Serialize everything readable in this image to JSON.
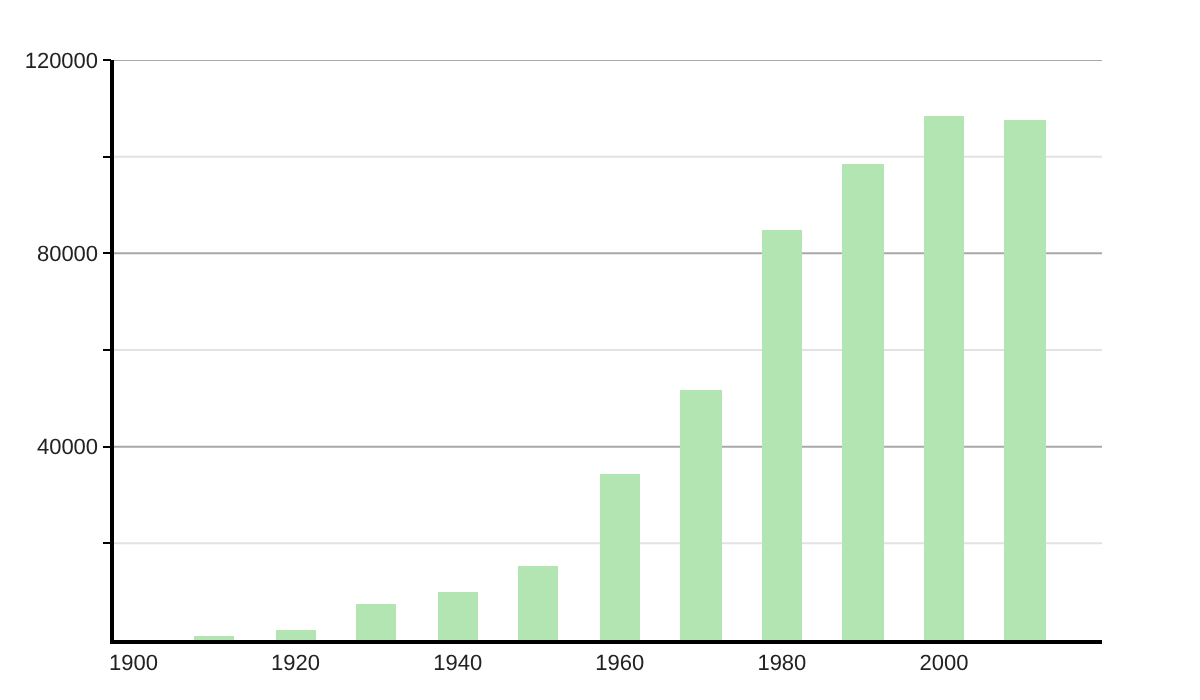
{
  "chart_data": {
    "type": "bar",
    "x": [
      1910,
      1920,
      1930,
      1940,
      1950,
      1960,
      1970,
      1980,
      1990,
      2000,
      2010
    ],
    "values": [
      800,
      2100,
      7500,
      9900,
      15300,
      34400,
      51800,
      84800,
      98600,
      108500,
      107700
    ],
    "color": "#b3e5b3",
    "xlim": [
      1897.6,
      2019.5
    ],
    "xticks": [
      1900,
      1920,
      1940,
      1960,
      1980,
      2000
    ],
    "ylim": [
      0,
      120000
    ],
    "yticks": [
      {
        "value": 20000,
        "label": null
      },
      40000,
      {
        "value": 60000,
        "label": null
      },
      80000,
      {
        "value": 100000,
        "label": null
      },
      120000
    ],
    "grid": "y"
  }
}
